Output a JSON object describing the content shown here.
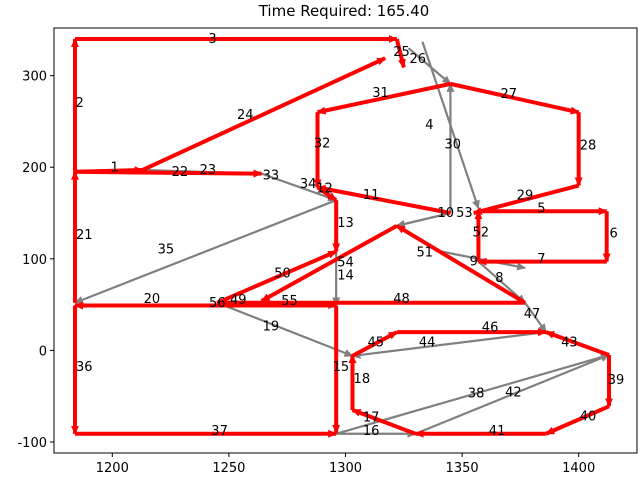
{
  "chart_data": {
    "type": "network",
    "title": "Time Required: 165.40",
    "xlim": [
      1175,
      1425
    ],
    "ylim": [
      -112,
      352
    ],
    "xticks": [
      1200,
      1250,
      1300,
      1350,
      1400
    ],
    "yticks": [
      -100,
      0,
      100,
      200,
      300
    ],
    "route_color": "#ff0000",
    "other_color": "#808080",
    "edges": [
      {
        "label": "1",
        "from": [
          1184,
          195
        ],
        "to": [
          1213,
          197
        ],
        "route": true
      },
      {
        "label": "2",
        "from": [
          1184,
          195
        ],
        "to": [
          1184,
          340
        ],
        "route": true
      },
      {
        "label": "3",
        "from": [
          1184,
          340
        ],
        "to": [
          1322,
          340
        ],
        "route": true
      },
      {
        "label": "4",
        "from": [
          1333,
          337
        ],
        "to": [
          1357,
          155
        ],
        "route": false
      },
      {
        "label": "5",
        "from": [
          1357,
          152
        ],
        "to": [
          1412,
          152
        ],
        "route": true
      },
      {
        "label": "6",
        "from": [
          1412,
          152
        ],
        "to": [
          1412,
          97
        ],
        "route": true
      },
      {
        "label": "7",
        "from": [
          1412,
          97
        ],
        "to": [
          1357,
          97
        ],
        "route": true
      },
      {
        "label": "8",
        "from": [
          1357,
          97
        ],
        "to": [
          1377,
          52
        ],
        "route": false
      },
      {
        "label": "9",
        "from": [
          1341,
          108
        ],
        "to": [
          1377,
          90
        ],
        "route": false
      },
      {
        "label": "10",
        "from": [
          1345,
          150
        ],
        "to": [
          1322,
          136
        ],
        "route": false
      },
      {
        "label": "11",
        "from": [
          1345,
          150
        ],
        "to": [
          1288,
          178
        ],
        "route": true
      },
      {
        "label": "12",
        "from": [
          1288,
          178
        ],
        "to": [
          1296,
          164
        ],
        "route": true
      },
      {
        "label": "13",
        "from": [
          1296,
          164
        ],
        "to": [
          1296,
          108
        ],
        "route": true
      },
      {
        "label": "14",
        "from": [
          1296,
          108
        ],
        "to": [
          1296,
          49
        ],
        "route": false
      },
      {
        "label": "15",
        "from": [
          1296,
          49
        ],
        "to": [
          1296,
          -90
        ],
        "route": true
      },
      {
        "label": "16",
        "from": [
          1296,
          -91
        ],
        "to": [
          1330,
          -91
        ],
        "route": false
      },
      {
        "label": "17",
        "from": [
          1330,
          -91
        ],
        "to": [
          1303,
          -65
        ],
        "route": true
      },
      {
        "label": "18",
        "from": [
          1303,
          -65
        ],
        "to": [
          1303,
          -5
        ],
        "route": true
      },
      {
        "label": "19",
        "from": [
          1245,
          52
        ],
        "to": [
          1303,
          -6
        ],
        "route": false
      },
      {
        "label": "20",
        "from": [
          1296,
          49
        ],
        "to": [
          1184,
          49
        ],
        "route": true
      },
      {
        "label": "21",
        "from": [
          1184,
          52
        ],
        "to": [
          1184,
          195
        ],
        "route": true
      },
      {
        "label": "22",
        "from": [
          1264,
          193
        ],
        "to": [
          1213,
          197
        ],
        "route": false
      },
      {
        "label": "23",
        "from": [
          1184,
          195
        ],
        "to": [
          1264,
          193
        ],
        "route": true
      },
      {
        "label": "24",
        "from": [
          1213,
          197
        ],
        "to": [
          1317,
          319
        ],
        "route": true
      },
      {
        "label": "25",
        "from": [
          1322,
          340
        ],
        "to": [
          1325,
          309
        ],
        "route": true
      },
      {
        "label": "26",
        "from": [
          1327,
          330
        ],
        "to": [
          1345,
          291
        ],
        "route": false
      },
      {
        "label": "27",
        "from": [
          1345,
          291
        ],
        "to": [
          1400,
          260
        ],
        "route": true
      },
      {
        "label": "28",
        "from": [
          1400,
          260
        ],
        "to": [
          1400,
          180
        ],
        "route": true
      },
      {
        "label": "29",
        "from": [
          1400,
          180
        ],
        "to": [
          1355,
          150
        ],
        "route": true
      },
      {
        "label": "30",
        "from": [
          1345,
          150
        ],
        "to": [
          1345,
          291
        ],
        "route": false
      },
      {
        "label": "31",
        "from": [
          1345,
          291
        ],
        "to": [
          1288,
          260
        ],
        "route": true
      },
      {
        "label": "32",
        "from": [
          1288,
          260
        ],
        "to": [
          1288,
          178
        ],
        "route": true
      },
      {
        "label": "33",
        "from": [
          1264,
          193
        ],
        "to": [
          1296,
          164
        ],
        "route": false
      },
      {
        "label": "34",
        "from": [
          1288,
          178
        ],
        "to": [
          1288,
          178
        ],
        "route": false
      },
      {
        "label": "35",
        "from": [
          1296,
          164
        ],
        "to": [
          1184,
          52
        ],
        "route": false
      },
      {
        "label": "36",
        "from": [
          1184,
          49
        ],
        "to": [
          1184,
          -91
        ],
        "route": true
      },
      {
        "label": "37",
        "from": [
          1184,
          -91
        ],
        "to": [
          1296,
          -91
        ],
        "route": true
      },
      {
        "label": "38",
        "from": [
          1296,
          -91
        ],
        "to": [
          1413,
          -5
        ],
        "route": false
      },
      {
        "label": "39",
        "from": [
          1413,
          -5
        ],
        "to": [
          1413,
          -61
        ],
        "route": true
      },
      {
        "label": "40",
        "from": [
          1413,
          -61
        ],
        "to": [
          1386,
          -91
        ],
        "route": true
      },
      {
        "label": "41",
        "from": [
          1386,
          -91
        ],
        "to": [
          1330,
          -91
        ],
        "route": true
      },
      {
        "label": "42",
        "from": [
          1330,
          -91
        ],
        "to": [
          1413,
          -5
        ],
        "route": false
      },
      {
        "label": "43",
        "from": [
          1413,
          -5
        ],
        "to": [
          1386,
          20
        ],
        "route": true
      },
      {
        "label": "44",
        "from": [
          1386,
          20
        ],
        "to": [
          1303,
          -6
        ],
        "route": false
      },
      {
        "label": "45",
        "from": [
          1303,
          -6
        ],
        "to": [
          1322,
          20
        ],
        "route": true
      },
      {
        "label": "46",
        "from": [
          1322,
          20
        ],
        "to": [
          1386,
          20
        ],
        "route": true
      },
      {
        "label": "47",
        "from": [
          1377,
          52
        ],
        "to": [
          1386,
          20
        ],
        "route": false
      },
      {
        "label": "48",
        "from": [
          1377,
          52
        ],
        "to": [
          1245,
          52
        ],
        "route": true
      },
      {
        "label": "49",
        "from": [
          1245,
          52
        ],
        "to": [
          1296,
          49
        ],
        "route": false
      },
      {
        "label": "50",
        "from": [
          1245,
          52
        ],
        "to": [
          1296,
          108
        ],
        "route": true
      },
      {
        "label": "51",
        "from": [
          1377,
          52
        ],
        "to": [
          1322,
          136
        ],
        "route": true
      },
      {
        "label": "52",
        "from": [
          1357,
          97
        ],
        "to": [
          1357,
          152
        ],
        "route": true
      },
      {
        "label": "53",
        "from": [
          1345,
          150
        ],
        "to": [
          1322,
          136
        ],
        "route": false
      },
      {
        "label": "54",
        "from": [
          1322,
          136
        ],
        "to": [
          1264,
          54
        ],
        "route": true
      },
      {
        "label": "55",
        "from": [
          1296,
          52
        ],
        "to": [
          1245,
          52
        ],
        "route": false
      },
      {
        "label": "56",
        "from": [
          1245,
          52
        ],
        "to": [
          1245,
          52
        ],
        "route": false
      }
    ],
    "label_positions": {
      "1": [
        1201,
        201
      ],
      "2": [
        1186,
        271
      ],
      "3": [
        1243,
        341
      ],
      "4": [
        1336,
        247
      ],
      "5": [
        1384,
        156
      ],
      "6": [
        1415,
        129
      ],
      "7": [
        1384,
        101
      ],
      "8": [
        1366,
        80
      ],
      "9": [
        1355,
        98
      ],
      "10": [
        1343,
        151
      ],
      "11": [
        1311,
        171
      ],
      "12": [
        1291,
        178
      ],
      "13": [
        1300,
        140
      ],
      "14": [
        1300,
        83
      ],
      "15": [
        1298,
        -17
      ],
      "16": [
        1311,
        -87
      ],
      "17": [
        1311,
        -72
      ],
      "18": [
        1307,
        -30
      ],
      "19": [
        1268,
        27
      ],
      "20": [
        1217,
        57
      ],
      "21": [
        1188,
        127
      ],
      "22": [
        1229,
        196
      ],
      "23": [
        1241,
        198
      ],
      "24": [
        1257,
        258
      ],
      "25": [
        1324,
        327
      ],
      "26": [
        1331,
        319
      ],
      "27": [
        1370,
        281
      ],
      "28": [
        1404,
        225
      ],
      "29": [
        1377,
        170
      ],
      "30": [
        1346,
        226
      ],
      "31": [
        1315,
        282
      ],
      "32": [
        1290,
        227
      ],
      "33": [
        1268,
        192
      ],
      "34": [
        1284,
        183
      ],
      "35": [
        1223,
        111
      ],
      "36": [
        1188,
        -17
      ],
      "37": [
        1246,
        -87
      ],
      "38": [
        1356,
        -46
      ],
      "39": [
        1416,
        -31
      ],
      "40": [
        1404,
        -71
      ],
      "41": [
        1365,
        -87
      ],
      "42": [
        1372,
        -45
      ],
      "43": [
        1396,
        10
      ],
      "44": [
        1335,
        10
      ],
      "45": [
        1313,
        10
      ],
      "46": [
        1362,
        26
      ],
      "47": [
        1380,
        41
      ],
      "48": [
        1324,
        57
      ],
      "49": [
        1254,
        56
      ],
      "50": [
        1273,
        85
      ],
      "51": [
        1334,
        108
      ],
      "52": [
        1358,
        130
      ],
      "53": [
        1351,
        151
      ],
      "54": [
        1300,
        97
      ],
      "55": [
        1276,
        55
      ],
      "56": [
        1245,
        53
      ]
    }
  }
}
